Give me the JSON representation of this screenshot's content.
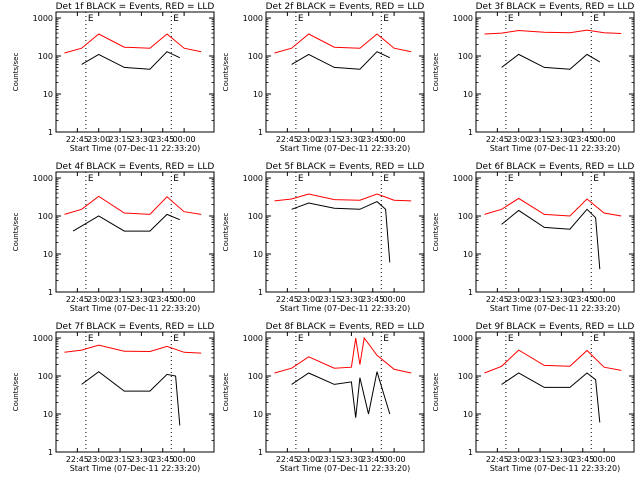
{
  "chart_data": [
    {
      "type": "line",
      "title": "Det 1f BLACK = Events, RED = LLD",
      "xlabel": "Start Time (07-Dec-11 22:33:20)",
      "ylabel": "Counts/sec",
      "xticks": [
        "22:45",
        "23:00",
        "23:15",
        "23:30",
        "23:45",
        "00:00"
      ],
      "yticks": [
        "1",
        "10",
        "100",
        "1000"
      ],
      "ylim": [
        1,
        1000
      ],
      "yscale": "log",
      "markers": [
        "E",
        "E"
      ],
      "series": [
        {
          "color": "#ff0000",
          "x": [
            22.6,
            22.8,
            23.0,
            23.3,
            23.6,
            23.8,
            24.0,
            24.2
          ],
          "y": [
            120,
            160,
            380,
            170,
            160,
            380,
            160,
            130
          ]
        },
        {
          "color": "#000000",
          "x": [
            22.8,
            23.0,
            23.3,
            23.6,
            23.8,
            23.95
          ],
          "y": [
            60,
            110,
            50,
            45,
            130,
            90
          ]
        }
      ]
    },
    {
      "type": "line",
      "title": "Det 2f BLACK = Events, RED = LLD",
      "xlabel": "Start Time (07-Dec-11 22:33:20)",
      "ylabel": "Counts/sec",
      "xticks": [
        "22:45",
        "23:00",
        "23:15",
        "23:30",
        "23:45",
        "00:00"
      ],
      "yticks": [
        "1",
        "10",
        "100",
        "1000"
      ],
      "ylim": [
        1,
        1000
      ],
      "yscale": "log",
      "markers": [
        "E",
        "E"
      ],
      "series": [
        {
          "color": "#ff0000",
          "x": [
            22.6,
            22.8,
            23.0,
            23.3,
            23.6,
            23.8,
            24.0,
            24.2
          ],
          "y": [
            120,
            160,
            380,
            170,
            160,
            380,
            160,
            130
          ]
        },
        {
          "color": "#000000",
          "x": [
            22.8,
            23.0,
            23.3,
            23.6,
            23.8,
            23.95
          ],
          "y": [
            60,
            110,
            50,
            45,
            130,
            90
          ]
        }
      ]
    },
    {
      "type": "line",
      "title": "Det 3f BLACK = Events, RED = LLD",
      "xlabel": "Start Time (07-Dec-11 22:33:20)",
      "ylabel": "Counts/sec",
      "xticks": [
        "22:45",
        "23:00",
        "23:15",
        "23:30",
        "23:45",
        "00:00"
      ],
      "yticks": [
        "1",
        "10",
        "100",
        "1000"
      ],
      "ylim": [
        1,
        1000
      ],
      "yscale": "log",
      "markers": [
        "E",
        "E"
      ],
      "series": [
        {
          "color": "#ff0000",
          "x": [
            22.6,
            22.8,
            23.0,
            23.3,
            23.6,
            23.8,
            24.0,
            24.2
          ],
          "y": [
            380,
            400,
            470,
            420,
            410,
            480,
            410,
            390
          ]
        },
        {
          "color": "#000000",
          "x": [
            22.8,
            23.0,
            23.3,
            23.6,
            23.8,
            23.95
          ],
          "y": [
            50,
            110,
            50,
            45,
            110,
            70
          ]
        }
      ]
    },
    {
      "type": "line",
      "title": "Det 4f BLACK = Events, RED = LLD",
      "xlabel": "Start Time (07-Dec-11 22:33:20)",
      "ylabel": "Counts/sec",
      "xticks": [
        "22:45",
        "23:00",
        "23:15",
        "23:30",
        "23:45",
        "00:00"
      ],
      "yticks": [
        "1",
        "10",
        "100",
        "1000"
      ],
      "ylim": [
        1,
        1000
      ],
      "yscale": "log",
      "markers": [
        "E",
        "E"
      ],
      "series": [
        {
          "color": "#ff0000",
          "x": [
            22.6,
            22.8,
            23.0,
            23.3,
            23.6,
            23.8,
            24.0,
            24.2
          ],
          "y": [
            110,
            150,
            330,
            120,
            110,
            320,
            130,
            110
          ]
        },
        {
          "color": "#000000",
          "x": [
            22.7,
            23.0,
            23.3,
            23.6,
            23.8,
            23.95
          ],
          "y": [
            40,
            100,
            40,
            40,
            110,
            80
          ]
        }
      ]
    },
    {
      "type": "line",
      "title": "Det 5f BLACK = Events, RED = LLD",
      "xlabel": "Start Time (07-Dec-11 22:33:20)",
      "ylabel": "Counts/sec",
      "xticks": [
        "22:45",
        "23:00",
        "23:15",
        "23:30",
        "23:45",
        "00:00"
      ],
      "yticks": [
        "1",
        "10",
        "100",
        "1000"
      ],
      "ylim": [
        1,
        1000
      ],
      "yscale": "log",
      "markers": [
        "E",
        "E"
      ],
      "series": [
        {
          "color": "#ff0000",
          "x": [
            22.6,
            22.8,
            23.0,
            23.3,
            23.6,
            23.8,
            24.0,
            24.2
          ],
          "y": [
            250,
            280,
            380,
            270,
            260,
            380,
            260,
            250
          ]
        },
        {
          "color": "#000000",
          "x": [
            22.8,
            23.0,
            23.3,
            23.6,
            23.8,
            23.9,
            23.95
          ],
          "y": [
            150,
            220,
            160,
            150,
            240,
            150,
            6
          ]
        }
      ]
    },
    {
      "type": "line",
      "title": "Det 6f BLACK = Events, RED = LLD",
      "xlabel": "Start Time (07-Dec-11 22:33:20)",
      "ylabel": "Counts/sec",
      "xticks": [
        "22:45",
        "23:00",
        "23:15",
        "23:30",
        "23:45",
        "00:00"
      ],
      "yticks": [
        "1",
        "10",
        "100",
        "1000"
      ],
      "ylim": [
        1,
        1000
      ],
      "yscale": "log",
      "markers": [
        "E",
        "E"
      ],
      "series": [
        {
          "color": "#ff0000",
          "x": [
            22.6,
            22.8,
            23.0,
            23.3,
            23.6,
            23.8,
            24.0,
            24.2
          ],
          "y": [
            110,
            150,
            290,
            110,
            100,
            280,
            120,
            100
          ]
        },
        {
          "color": "#000000",
          "x": [
            22.8,
            23.0,
            23.3,
            23.6,
            23.8,
            23.9,
            23.95
          ],
          "y": [
            60,
            140,
            50,
            45,
            150,
            90,
            4
          ]
        }
      ]
    },
    {
      "type": "line",
      "title": "Det 7f BLACK = Events, RED = LLD",
      "xlabel": "Start Time (07-Dec-11 22:33:20)",
      "ylabel": "Counts/sec",
      "xticks": [
        "22:45",
        "23:00",
        "23:15",
        "23:30",
        "23:45",
        "00:00"
      ],
      "yticks": [
        "1",
        "10",
        "100",
        "1000"
      ],
      "ylim": [
        1,
        1000
      ],
      "yscale": "log",
      "markers": [
        "E",
        "E"
      ],
      "series": [
        {
          "color": "#ff0000",
          "x": [
            22.6,
            22.8,
            23.0,
            23.3,
            23.6,
            23.8,
            24.0,
            24.2
          ],
          "y": [
            420,
            480,
            650,
            450,
            440,
            600,
            420,
            400
          ]
        },
        {
          "color": "#000000",
          "x": [
            22.8,
            23.0,
            23.3,
            23.6,
            23.8,
            23.9,
            23.95
          ],
          "y": [
            60,
            130,
            40,
            40,
            110,
            100,
            5
          ]
        }
      ]
    },
    {
      "type": "line",
      "title": "Det 8f BLACK = Events, RED = LLD",
      "xlabel": "Start Time (07-Dec-11 22:33:20)",
      "ylabel": "Counts/sec",
      "xticks": [
        "22:45",
        "23:00",
        "23:15",
        "23:30",
        "23:45",
        "00:00"
      ],
      "yticks": [
        "1",
        "10",
        "100",
        "1000"
      ],
      "ylim": [
        1,
        1000
      ],
      "yscale": "log",
      "markers": [
        "E",
        "E"
      ],
      "series": [
        {
          "color": "#ff0000",
          "x": [
            22.6,
            22.8,
            23.0,
            23.3,
            23.5,
            23.55,
            23.6,
            23.65,
            23.8,
            24.0,
            24.2
          ],
          "y": [
            120,
            160,
            320,
            160,
            170,
            1000,
            200,
            1000,
            350,
            150,
            120
          ]
        },
        {
          "color": "#000000",
          "x": [
            22.8,
            23.0,
            23.3,
            23.5,
            23.55,
            23.6,
            23.7,
            23.8,
            23.95
          ],
          "y": [
            60,
            120,
            60,
            70,
            8,
            90,
            10,
            130,
            10
          ]
        }
      ]
    },
    {
      "type": "line",
      "title": "Det 9f BLACK = Events, RED = LLD",
      "xlabel": "Start Time (07-Dec-11 22:33:20)",
      "ylabel": "Counts/sec",
      "xticks": [
        "22:45",
        "23:00",
        "23:15",
        "23:30",
        "23:45",
        "00:00"
      ],
      "yticks": [
        "1",
        "10",
        "100",
        "1000"
      ],
      "ylim": [
        1,
        1000
      ],
      "yscale": "log",
      "markers": [
        "E",
        "E"
      ],
      "series": [
        {
          "color": "#ff0000",
          "x": [
            22.6,
            22.8,
            23.0,
            23.3,
            23.6,
            23.8,
            24.0,
            24.2
          ],
          "y": [
            120,
            180,
            480,
            190,
            180,
            470,
            170,
            140
          ]
        },
        {
          "color": "#000000",
          "x": [
            22.8,
            23.0,
            23.3,
            23.6,
            23.8,
            23.9,
            23.95
          ],
          "y": [
            60,
            120,
            50,
            50,
            120,
            80,
            6
          ]
        }
      ]
    }
  ]
}
